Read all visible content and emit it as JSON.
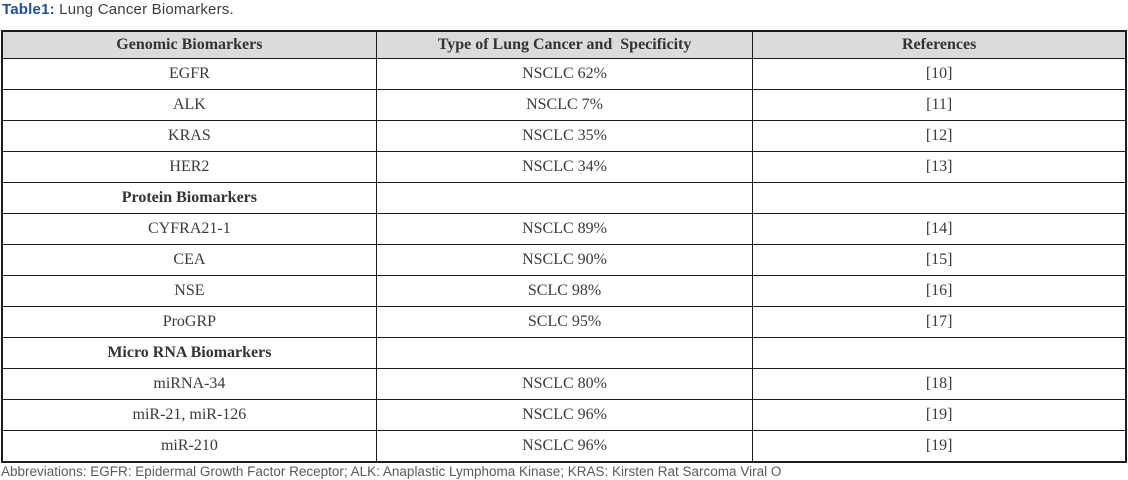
{
  "caption": {
    "label": "Table1:",
    "text": " Lung Cancer Biomarkers."
  },
  "table": {
    "headers": [
      "Genomic Biomarkers",
      "Type of Lung Cancer and  Specificity",
      "References"
    ],
    "rows": [
      {
        "type": "data",
        "cells": [
          "EGFR",
          "NSCLC 62%",
          "[10]"
        ]
      },
      {
        "type": "data",
        "cells": [
          "ALK",
          "NSCLC 7%",
          "[11]"
        ]
      },
      {
        "type": "data",
        "cells": [
          "KRAS",
          "NSCLC 35%",
          "[12]"
        ]
      },
      {
        "type": "data",
        "cells": [
          "HER2",
          "NSCLC 34%",
          "[13]"
        ]
      },
      {
        "type": "section",
        "cells": [
          "Protein Biomarkers",
          "",
          ""
        ]
      },
      {
        "type": "data",
        "cells": [
          "CYFRA21-1",
          "NSCLC 89%",
          "[14]"
        ]
      },
      {
        "type": "data",
        "cells": [
          "CEA",
          "NSCLC 90%",
          "[15]"
        ]
      },
      {
        "type": "data",
        "cells": [
          "NSE",
          "SCLC 98%",
          "[16]"
        ]
      },
      {
        "type": "data",
        "cells": [
          "ProGRP",
          "SCLC 95%",
          "[17]"
        ]
      },
      {
        "type": "section",
        "cells": [
          "Micro RNA Biomarkers",
          "",
          ""
        ]
      },
      {
        "type": "data",
        "cells": [
          "miRNA-34",
          "NSCLC 80%",
          "[18]"
        ]
      },
      {
        "type": "data",
        "cells": [
          "miR-21, miR-126",
          "NSCLC 96%",
          "[19]"
        ]
      },
      {
        "type": "data",
        "cells": [
          "miR-210",
          "NSCLC 96%",
          "[19]"
        ]
      }
    ]
  },
  "footnote": {
    "text": "Abbreviations: EGFR: Epidermal Growth Factor Receptor; ALK: Anaplastic Lymphoma Kinase; KRAS: Kirsten Rat Sarcoma Viral O"
  },
  "colors": {
    "caption_accent": "#1f4e9c",
    "header_background": "#d9dcdb",
    "border": "#1c1c1c",
    "cell_text": "#3a3a3a",
    "footnote_text": "#5a5a5a"
  }
}
